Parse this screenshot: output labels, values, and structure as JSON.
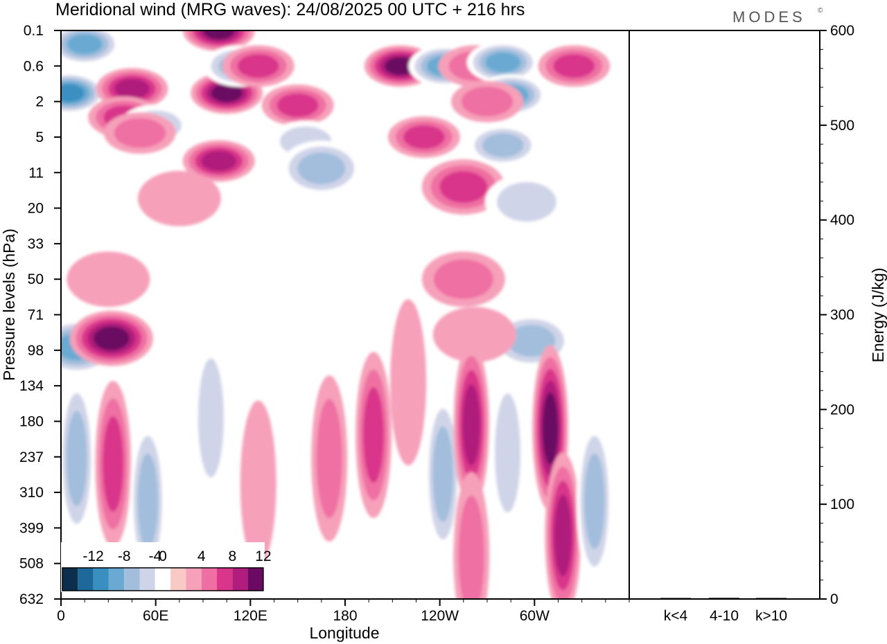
{
  "chart_data": [
    {
      "type": "heatmap",
      "title": "Meridional wind (MRG waves):  24/08/2025  00 UTC  + 216 hrs",
      "xlabel": "Longitude",
      "ylabel": "Pressure levels (hPa)",
      "x_ticks": [
        "0",
        "60E",
        "120E",
        "180",
        "120W",
        "60W"
      ],
      "y_ticks": [
        "0.1",
        "0.6",
        "2",
        "5",
        "11",
        "20",
        "33",
        "50",
        "71",
        "98",
        "134",
        "180",
        "237",
        "310",
        "399",
        "508",
        "632"
      ],
      "colorbar": {
        "labels": [
          "-12",
          "-8",
          "-4",
          "0",
          "4",
          "8",
          "12"
        ],
        "levels": [
          -14,
          -12,
          -10,
          -8,
          -6,
          -4,
          -2,
          2,
          4,
          6,
          8,
          10,
          12,
          14
        ],
        "colors": [
          "#0b2f4c",
          "#1d6a9a",
          "#3a8fc1",
          "#6aaad2",
          "#a3bedc",
          "#d0d4e8",
          "#ffffff",
          "#f9c9c6",
          "#f6a0ba",
          "#ef6fa2",
          "#d9368b",
          "#b01d7c",
          "#6a0a62"
        ]
      },
      "features": [
        {
          "lon": 5,
          "lev": 1.5,
          "v": -10
        },
        {
          "lon": 15,
          "lev": 0.2,
          "v": -8
        },
        {
          "lon": 45,
          "lev": 1.3,
          "v": 9
        },
        {
          "lon": 40,
          "lev": 3.0,
          "v": 6
        },
        {
          "lon": 60,
          "lev": 3.7,
          "v": -4
        },
        {
          "lon": 100,
          "lev": 0.1,
          "v": 11
        },
        {
          "lon": 105,
          "lev": 1.5,
          "v": 11
        },
        {
          "lon": 113,
          "lev": 0.6,
          "v": -6
        },
        {
          "lon": 125,
          "lev": 0.6,
          "v": 7
        },
        {
          "lon": 150,
          "lev": 2.2,
          "v": 6
        },
        {
          "lon": 215,
          "lev": 0.6,
          "v": 10
        },
        {
          "lon": 243,
          "lev": 0.6,
          "v": -9
        },
        {
          "lon": 262,
          "lev": 0.6,
          "v": 4
        },
        {
          "lon": 280,
          "lev": 0.5,
          "v": -8
        },
        {
          "lon": 285,
          "lev": 1.6,
          "v": -8
        },
        {
          "lon": 270,
          "lev": 2.0,
          "v": 4
        },
        {
          "lon": 325,
          "lev": 0.6,
          "v": 6
        },
        {
          "lon": 50,
          "lev": 4.5,
          "v": 5
        },
        {
          "lon": 100,
          "lev": 8.5,
          "v": 8
        },
        {
          "lon": 155,
          "lev": 5.5,
          "v": -4
        },
        {
          "lon": 165,
          "lev": 10.0,
          "v": -6
        },
        {
          "lon": 230,
          "lev": 5.0,
          "v": 6
        },
        {
          "lon": 255,
          "lev": 14.0,
          "v": 7
        },
        {
          "lon": 280,
          "lev": 6.0,
          "v": -7
        },
        {
          "lon": 295,
          "lev": 18.0,
          "v": -5
        },
        {
          "lon": 75,
          "lev": 17.0,
          "v": 3
        },
        {
          "lon": 30,
          "lev": 50.0,
          "v": 3
        },
        {
          "lon": 255,
          "lev": 50.0,
          "v": 4
        },
        {
          "lon": 10,
          "lev": 95.0,
          "v": -8
        },
        {
          "lon": 32,
          "lev": 88.0,
          "v": 10
        },
        {
          "lon": 298,
          "lev": 90.0,
          "v": -6
        },
        {
          "lon": 262,
          "lev": 85.0,
          "v": 3
        },
        {
          "lon": 10,
          "lev": 240.0,
          "v": -7
        },
        {
          "lon": 33,
          "lev": 250.0,
          "v": 7
        },
        {
          "lon": 55,
          "lev": 330.0,
          "v": -7
        },
        {
          "lon": 95,
          "lev": 175.0,
          "v": -5
        },
        {
          "lon": 170,
          "lev": 240.0,
          "v": 5
        },
        {
          "lon": 198,
          "lev": 200.0,
          "v": 7
        },
        {
          "lon": 242,
          "lev": 270.0,
          "v": -7
        },
        {
          "lon": 260,
          "lev": 185.0,
          "v": 9
        },
        {
          "lon": 283,
          "lev": 230.0,
          "v": -5
        },
        {
          "lon": 310,
          "lev": 190.0,
          "v": 10
        },
        {
          "lon": 318,
          "lev": 420.0,
          "v": 8
        },
        {
          "lon": 338,
          "lev": 330.0,
          "v": -6
        },
        {
          "lon": 125,
          "lev": 290.0,
          "v": 3
        },
        {
          "lon": 260,
          "lev": 480.0,
          "v": 4
        },
        {
          "lon": 220,
          "lev": 130.0,
          "v": 3
        }
      ]
    },
    {
      "type": "bar",
      "ylabel": "Energy (J/kg)",
      "categories": [
        "k<4",
        "4-10",
        "k>10"
      ],
      "values": [
        0.3,
        1.2,
        0.3
      ],
      "ylim": [
        0,
        600
      ],
      "y_ticks": [
        "0",
        "100",
        "200",
        "300",
        "400",
        "500",
        "600"
      ]
    }
  ],
  "brand": "MODES",
  "brand_mark": "©"
}
